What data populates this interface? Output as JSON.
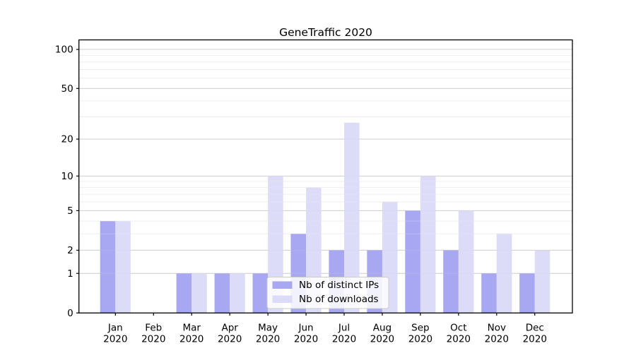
{
  "chart_data": {
    "type": "bar",
    "title": "GeneTraffic 2020",
    "categories": [
      "Jan 2020",
      "Feb 2020",
      "Mar 2020",
      "Apr 2020",
      "May 2020",
      "Jun 2020",
      "Jul 2020",
      "Aug 2020",
      "Sep 2020",
      "Oct 2020",
      "Nov 2020",
      "Dec 2020"
    ],
    "series": [
      {
        "name": "Nb of distinct IPs",
        "color": "#a7a7f2",
        "values": [
          4,
          0,
          1,
          1,
          1,
          3,
          2,
          2,
          5,
          2,
          1,
          1
        ]
      },
      {
        "name": "Nb of downloads",
        "color": "#dcdcf8",
        "values": [
          4,
          0,
          1,
          1,
          10,
          8,
          27,
          6,
          10,
          5,
          3,
          2
        ]
      }
    ],
    "xlabel": "",
    "ylabel": "",
    "yscale": "log1p",
    "ylim": [
      0,
      118
    ],
    "ytick_values": [
      0,
      1,
      2,
      5,
      10,
      20,
      50,
      100
    ],
    "minor_grid_values": [
      3,
      4,
      6,
      7,
      8,
      9,
      30,
      40,
      60,
      70,
      80,
      90
    ],
    "grid": "on",
    "legend_position": "lower center"
  },
  "colors": {
    "background": "#ffffff",
    "bar_ips": "#a7a7f2",
    "bar_downloads": "#dcdcf8",
    "grid_major": "#cfcfcf",
    "grid_minor": "#efefef",
    "axis_border": "#000000",
    "legend_border": "#cccccc",
    "legend_fill": "#ffffff",
    "text": "#000000"
  }
}
